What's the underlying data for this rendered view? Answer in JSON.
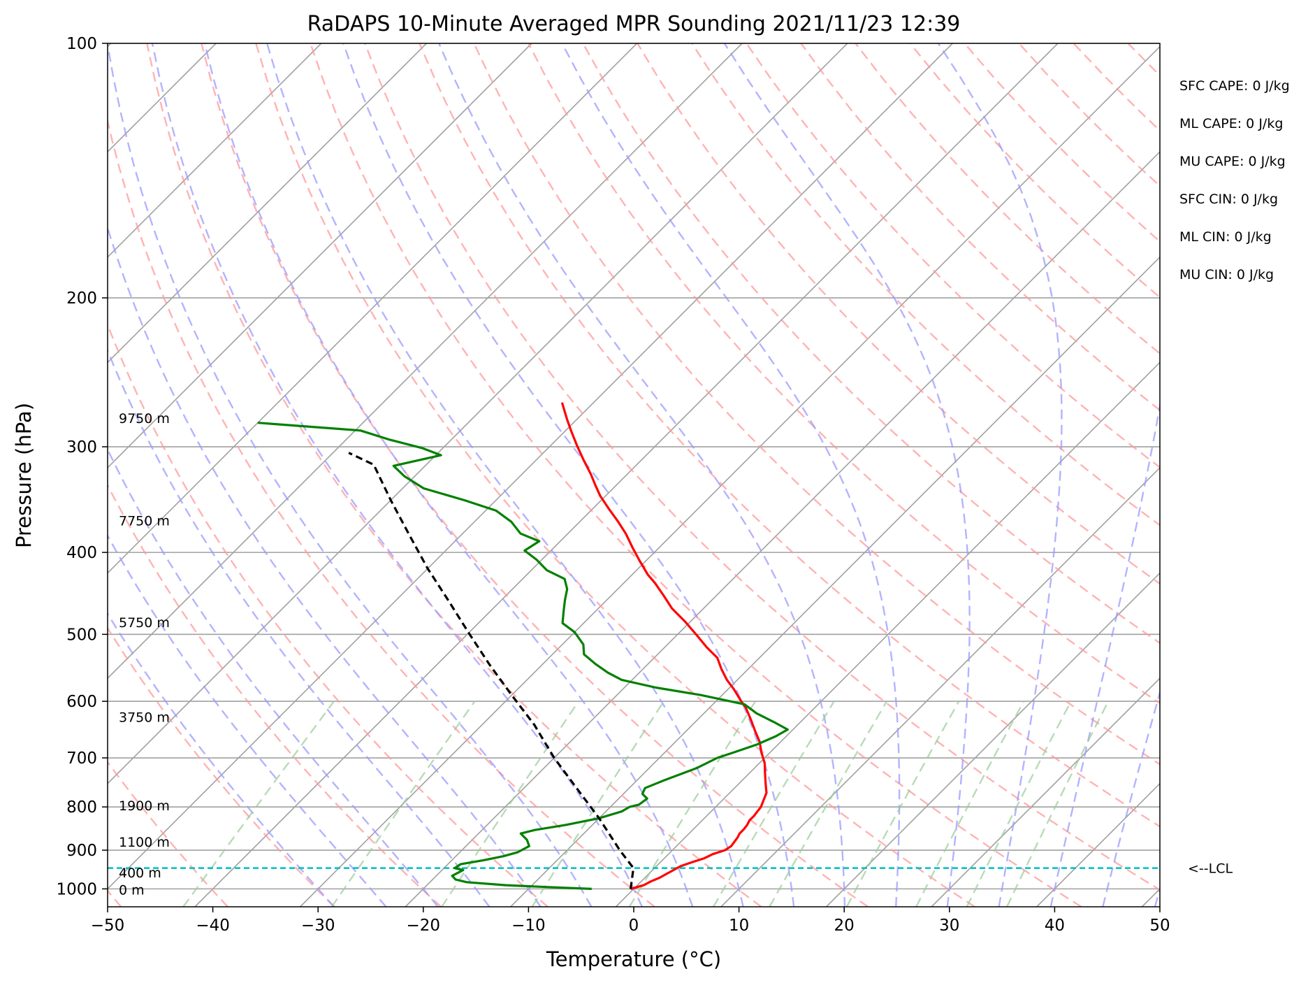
{
  "chart_data": {
    "type": "line",
    "title": "RaDAPS 10-Minute Averaged MPR Sounding 2021/11/23 12:39",
    "xlabel": "Temperature (°C)",
    "ylabel": "Pressure (hPa)",
    "xlim": [
      -50,
      50
    ],
    "ylim": [
      1050,
      100
    ],
    "y_scale": "log",
    "x_ticks": [
      -50,
      -40,
      -30,
      -20,
      -10,
      0,
      10,
      20,
      30,
      40,
      50
    ],
    "x_tick_labels": [
      "−50",
      "−40",
      "−30",
      "−20",
      "−10",
      "0",
      "10",
      "20",
      "30",
      "40",
      "50"
    ],
    "y_ticks": [
      100,
      200,
      300,
      400,
      500,
      600,
      700,
      800,
      900,
      1000
    ],
    "y_tick_labels": [
      "100",
      "200",
      "300",
      "400",
      "500",
      "600",
      "700",
      "800",
      "900",
      "1000"
    ],
    "grid": true,
    "skew": "skew-T",
    "series": [
      {
        "kind": "temperature",
        "color": "#ff0000",
        "points": [
          [
            -0.3,
            1000
          ],
          [
            0.6,
            990
          ],
          [
            0.9,
            980
          ],
          [
            1.4,
            970
          ],
          [
            1.7,
            960
          ],
          [
            2.0,
            950
          ],
          [
            2.3,
            940
          ],
          [
            3.0,
            930
          ],
          [
            3.8,
            920
          ],
          [
            4.2,
            910
          ],
          [
            5.0,
            900
          ],
          [
            5.2,
            890
          ],
          [
            5.1,
            880
          ],
          [
            5.0,
            870
          ],
          [
            4.8,
            860
          ],
          [
            4.8,
            850
          ],
          [
            4.7,
            840
          ],
          [
            4.5,
            830
          ],
          [
            4.5,
            820
          ],
          [
            4.4,
            810
          ],
          [
            4.3,
            800
          ],
          [
            3.9,
            785
          ],
          [
            3.5,
            770
          ],
          [
            2.5,
            750
          ],
          [
            1.5,
            730
          ],
          [
            0.5,
            710
          ],
          [
            -0.8,
            690
          ],
          [
            -2.0,
            670
          ],
          [
            -3.5,
            650
          ],
          [
            -5.0,
            630
          ],
          [
            -6.6,
            610
          ],
          [
            -7.6,
            600
          ],
          [
            -9.5,
            580
          ],
          [
            -11.0,
            566
          ],
          [
            -12.5,
            550
          ],
          [
            -14.0,
            533
          ],
          [
            -16.0,
            518
          ],
          [
            -18.0,
            502
          ],
          [
            -20.5,
            483
          ],
          [
            -23.0,
            466
          ],
          [
            -25.0,
            450
          ],
          [
            -27.0,
            435
          ],
          [
            -28.5,
            425
          ],
          [
            -30.5,
            410
          ],
          [
            -32.5,
            395
          ],
          [
            -34.5,
            380
          ],
          [
            -36.5,
            367
          ],
          [
            -38.5,
            355
          ],
          [
            -40.5,
            343
          ],
          [
            -42.0,
            333
          ],
          [
            -43.5,
            323
          ],
          [
            -45.5,
            311
          ],
          [
            -47.5,
            299
          ],
          [
            -49.5,
            287
          ],
          [
            -51.0,
            278
          ],
          [
            -53.0,
            266
          ]
        ]
      },
      {
        "kind": "dewpoint",
        "color": "#008000",
        "points": [
          [
            -4.0,
            1000
          ],
          [
            -8.5,
            995
          ],
          [
            -12.5,
            990
          ],
          [
            -16.5,
            982
          ],
          [
            -17.8,
            975
          ],
          [
            -18.5,
            965
          ],
          [
            -18.0,
            950
          ],
          [
            -19.0,
            945
          ],
          [
            -18.8,
            935
          ],
          [
            -17.0,
            925
          ],
          [
            -15.5,
            915
          ],
          [
            -14.5,
            905
          ],
          [
            -14.0,
            890
          ],
          [
            -14.8,
            875
          ],
          [
            -16.0,
            860
          ],
          [
            -15.0,
            852
          ],
          [
            -12.5,
            840
          ],
          [
            -10.0,
            825
          ],
          [
            -8.5,
            810
          ],
          [
            -8.2,
            800
          ],
          [
            -7.5,
            795
          ],
          [
            -7.3,
            782
          ],
          [
            -8.2,
            772
          ],
          [
            -8.5,
            760
          ],
          [
            -7.5,
            745
          ],
          [
            -5.5,
            720
          ],
          [
            -4.5,
            700
          ],
          [
            -3.5,
            690
          ],
          [
            -2.0,
            675
          ],
          [
            -1.0,
            660
          ],
          [
            -0.5,
            648
          ],
          [
            -2.5,
            635
          ],
          [
            -5.0,
            620
          ],
          [
            -7.0,
            605
          ],
          [
            -12.0,
            590
          ],
          [
            -17.0,
            578
          ],
          [
            -21.0,
            566
          ],
          [
            -23.0,
            555
          ],
          [
            -25.0,
            542
          ],
          [
            -27.0,
            528
          ],
          [
            -28.0,
            514
          ],
          [
            -30.0,
            497
          ],
          [
            -32.0,
            485
          ],
          [
            -33.0,
            470
          ],
          [
            -34.0,
            455
          ],
          [
            -34.8,
            442
          ],
          [
            -36.0,
            430
          ],
          [
            -38.5,
            420
          ],
          [
            -40.5,
            408
          ],
          [
            -42.5,
            398
          ],
          [
            -42.0,
            388
          ],
          [
            -44.5,
            380
          ],
          [
            -46.5,
            368
          ],
          [
            -49.0,
            357
          ],
          [
            -53.0,
            347
          ],
          [
            -58.0,
            336
          ],
          [
            -61.0,
            325
          ],
          [
            -63.0,
            316
          ],
          [
            -59.5,
            307
          ],
          [
            -62.0,
            301
          ],
          [
            -66.0,
            294
          ],
          [
            -69.5,
            287
          ],
          [
            -80.0,
            281
          ]
        ]
      },
      {
        "kind": "parcel",
        "color": "#000000",
        "style": "dashed",
        "points": [
          [
            -0.3,
            1000
          ],
          [
            -2.0,
            945
          ],
          [
            -5.0,
            900
          ],
          [
            -10.0,
            825
          ],
          [
            -15.0,
            760
          ],
          [
            -20.0,
            700
          ],
          [
            -25.0,
            640
          ],
          [
            -30.0,
            590
          ],
          [
            -35.0,
            543
          ],
          [
            -40.0,
            498
          ],
          [
            -45.0,
            456
          ],
          [
            -50.0,
            418
          ],
          [
            -55.0,
            381
          ],
          [
            -60.0,
            347
          ],
          [
            -65.0,
            315
          ],
          [
            -68.5,
            305
          ]
        ]
      }
    ],
    "lcl": {
      "pressure": 945,
      "label": "<--LCL",
      "color": "#00bfbf"
    },
    "height_labels": [
      {
        "text": "0 m",
        "pressure": 1000
      },
      {
        "text": "400 m",
        "pressure": 955
      },
      {
        "text": "1100 m",
        "pressure": 878
      },
      {
        "text": "1900 m",
        "pressure": 795
      },
      {
        "text": "3750 m",
        "pressure": 625
      },
      {
        "text": "5750 m",
        "pressure": 483
      },
      {
        "text": "7750 m",
        "pressure": 366
      },
      {
        "text": "9750 m",
        "pressure": 277
      }
    ],
    "indices": [
      "SFC CAPE: 0 J/kg",
      "ML CAPE: 0 J/kg",
      "MU CAPE: 0 J/kg",
      "SFC CIN: 0 J/kg",
      "ML CIN: 0 J/kg",
      "MU CIN: 0 J/kg"
    ],
    "reference_lines": {
      "isotherms_color": "#a0a0a0",
      "dry_adiabats_color": "#ff9999",
      "moist_adiabats_color": "#9999ff",
      "mixing_ratio_color": "#99cc99"
    }
  }
}
